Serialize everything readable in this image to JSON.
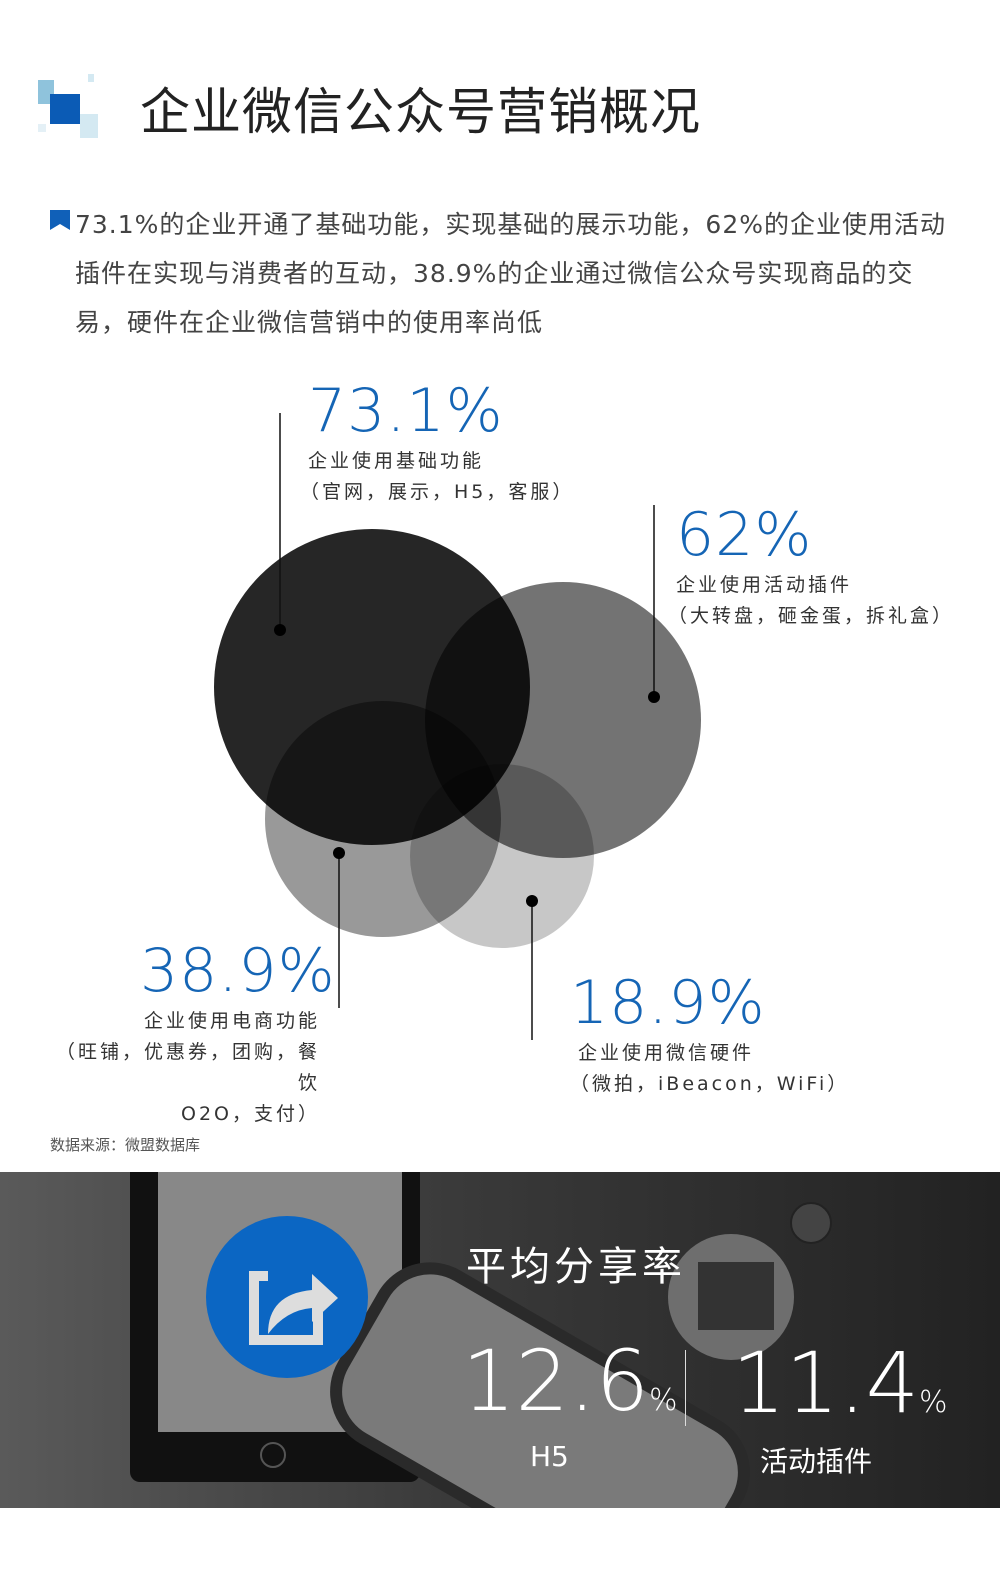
{
  "header": {
    "title": "企业微信公众号营销概况"
  },
  "intro": "73.1%的企业开通了基础功能，实现基础的展示功能，62%的企业使用活动插件在实现与消费者的互动，38.9%的企业通过微信公众号实现商品的交易，硬件在企业微信营销中的使用率尚低",
  "chart_data": {
    "type": "bubble",
    "series": [
      {
        "value_label": "73.1%",
        "value": 73.1,
        "label": "企业使用基础功能",
        "detail": "（官网，展示，H5，客服）",
        "color": "#222222"
      },
      {
        "value_label": "62%",
        "value": 62,
        "label": "企业使用活动插件",
        "detail": "（大转盘，砸金蛋，拆礼盒）",
        "color": "#7a7a7a"
      },
      {
        "value_label": "38.9%",
        "value": 38.9,
        "label": "企业使用电商功能",
        "detail": "（旺铺，优惠券，团购，餐饮",
        "detail2": "O2O，支付）",
        "color": "#999999"
      },
      {
        "value_label": "18.9%",
        "value": 18.9,
        "label": "企业使用微信硬件",
        "detail": "（微拍，iBeacon，WiFi）",
        "color": "#c4c4c4"
      }
    ]
  },
  "source": "数据来源：微盟数据库",
  "share": {
    "title": "平均分享率",
    "items": [
      {
        "value": "12.6",
        "unit": "%",
        "label": "H5"
      },
      {
        "value": "11.4",
        "unit": "%",
        "label": "活动插件"
      }
    ]
  },
  "colors": {
    "accent": "#1565b5"
  }
}
